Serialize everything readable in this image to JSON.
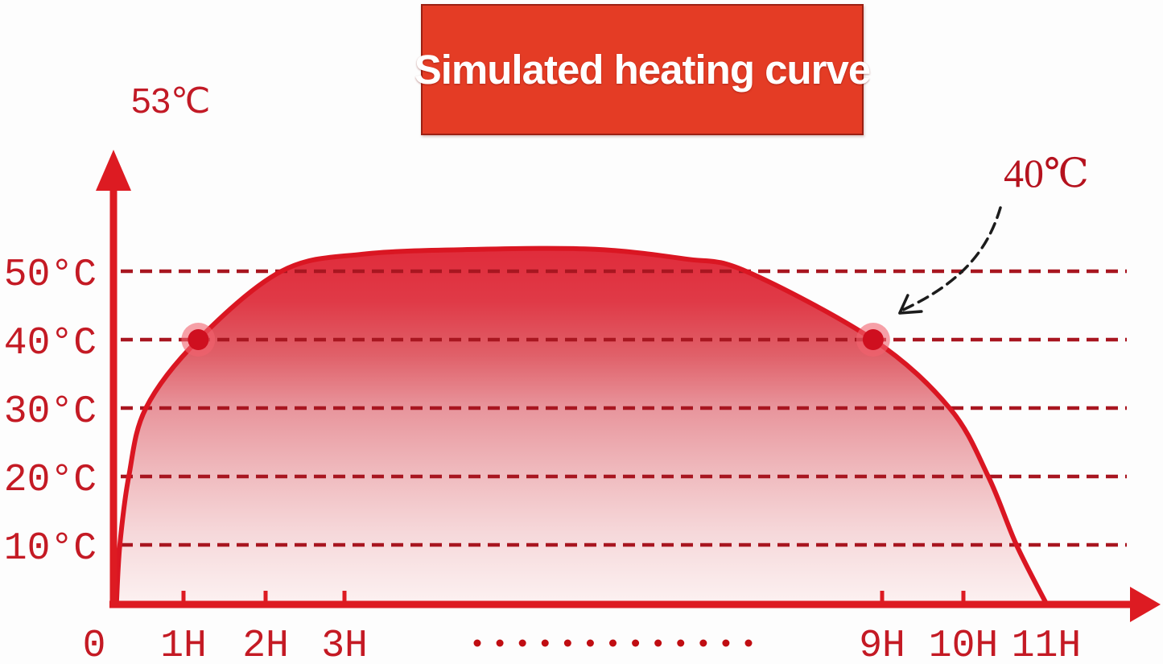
{
  "banner": {
    "title": "Simulated heating curve",
    "background": "#e43c25",
    "text_color": "#ffffff"
  },
  "chart_data": {
    "type": "area",
    "title": "Simulated heating curve",
    "xlabel": "",
    "ylabel": "",
    "ylim": [
      0,
      55
    ],
    "xlim_hours": [
      0,
      11
    ],
    "grid": "horizontal-dashed",
    "peak_label": "53℃",
    "peak_value_c": 53,
    "y_ticks": [
      {
        "label": "50°C",
        "value": 50
      },
      {
        "label": "40°C",
        "value": 40
      },
      {
        "label": "30°C",
        "value": 30
      },
      {
        "label": "20°C",
        "value": 20
      },
      {
        "label": "10°C",
        "value": 10
      }
    ],
    "x_ticks": [
      {
        "label": "0",
        "hour": 0,
        "tick": false
      },
      {
        "label": "1H",
        "hour": 1,
        "tick": true
      },
      {
        "label": "2H",
        "hour": 2,
        "tick": true
      },
      {
        "label": "3H",
        "hour": 3,
        "tick": true
      },
      {
        "label": "9H",
        "hour": 9,
        "tick": true
      },
      {
        "label": "10H",
        "hour": 10,
        "tick": true
      },
      {
        "label": "11H",
        "hour": 11,
        "tick": false
      }
    ],
    "x_axis_ellipsis_dot_count": 13,
    "series": [
      {
        "name": "simulated-heating-curve",
        "points_hour_tempC": [
          [
            0.02,
            0
          ],
          [
            0.07,
            10
          ],
          [
            0.2,
            20
          ],
          [
            0.45,
            30
          ],
          [
            1.18,
            40
          ],
          [
            2.2,
            50
          ],
          [
            3.2,
            52.5
          ],
          [
            4.5,
            53.2
          ],
          [
            5.8,
            53.2
          ],
          [
            6.8,
            51.8
          ],
          [
            7.48,
            50
          ],
          [
            8.9,
            40
          ],
          [
            9.83,
            30
          ],
          [
            10.3,
            20
          ],
          [
            10.64,
            10
          ],
          [
            11,
            0
          ]
        ]
      }
    ],
    "markers": [
      {
        "hour": 1.18,
        "tempC": 40
      },
      {
        "hour": 8.9,
        "tempC": 40
      }
    ],
    "annotation": {
      "label": "40℃",
      "target": {
        "hour": 8.9,
        "tempC": 40
      }
    },
    "colors": {
      "axis": "#dd1b22",
      "grid": "#a81620",
      "curve_stroke": "#da1622",
      "fill_top": "#e02c3b",
      "fill_bottom": "#fcf1f1",
      "tick_label": "#c41a24",
      "annotation_label": "#b5121e",
      "peak_label_color": "#c21a26",
      "marker_core": "#cf0f1f",
      "marker_halo": "#f2636e",
      "ellipsis_dot": "#c00d12",
      "arrow": "#1c1c1c"
    }
  }
}
